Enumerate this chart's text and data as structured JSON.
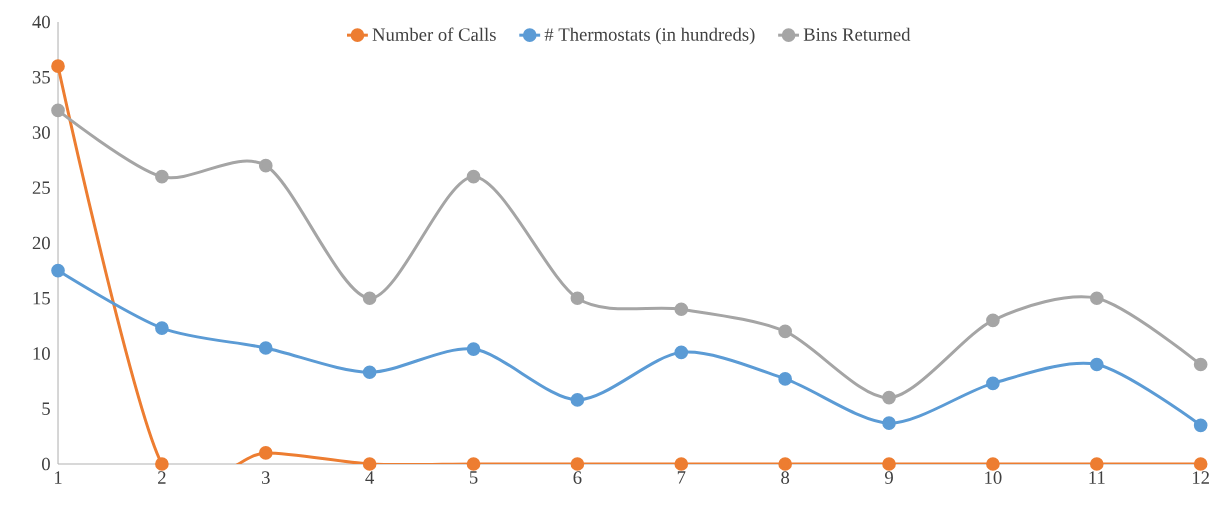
{
  "chart_data": {
    "type": "line",
    "x": [
      1,
      2,
      3,
      4,
      5,
      6,
      7,
      8,
      9,
      10,
      11,
      12
    ],
    "series": [
      {
        "name": "Number of Calls",
        "color": "#ed7d31",
        "values": [
          36,
          0,
          1,
          0,
          0,
          0,
          0,
          0,
          0,
          0,
          0,
          0
        ]
      },
      {
        "name": "# Thermostats (in hundreds)",
        "color": "#5b9bd5",
        "values": [
          17.5,
          12.3,
          10.5,
          8.3,
          10.4,
          5.8,
          10.1,
          7.7,
          3.7,
          7.3,
          9.0,
          3.5
        ]
      },
      {
        "name": "Bins Returned",
        "color": "#a5a5a5",
        "values": [
          32,
          26,
          27,
          15,
          26,
          15,
          14,
          12,
          6,
          13,
          15,
          9
        ]
      }
    ],
    "xlim": [
      1,
      12
    ],
    "xticks": [
      1,
      2,
      3,
      4,
      5,
      6,
      7,
      8,
      9,
      10,
      11,
      12
    ],
    "ylim": [
      0,
      40
    ],
    "yticks": [
      0,
      5,
      10,
      15,
      20,
      25,
      30,
      35,
      40
    ],
    "legend": "top",
    "marker": "circle",
    "line_style": "solid",
    "grid": false
  }
}
